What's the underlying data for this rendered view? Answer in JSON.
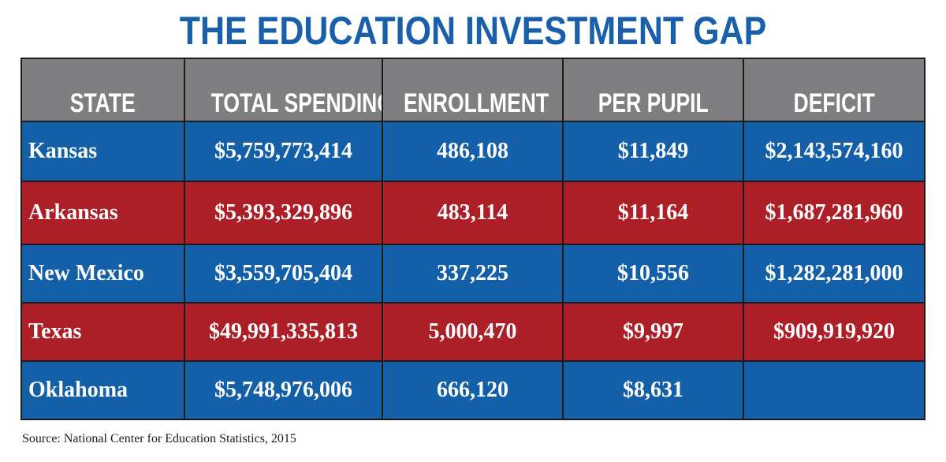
{
  "chart_data": {
    "type": "table",
    "title": "THE EDUCATION INVESTMENT GAP",
    "columns": [
      "STATE",
      "TOTAL SPENDING",
      "ENROLLMENT",
      "PER PUPIL",
      "DEFICIT"
    ],
    "rows": [
      {
        "state": "Kansas",
        "total_spending": "$5,759,773,414",
        "enrollment": "486,108",
        "per_pupil": "$11,849",
        "deficit": "$2,143,574,160",
        "color": "#1360a8"
      },
      {
        "state": "Arkansas",
        "total_spending": "$5,393,329,896",
        "enrollment": "483,114",
        "per_pupil": "$11,164",
        "deficit": "$1,687,281,960",
        "color": "#ad1f27"
      },
      {
        "state": "New Mexico",
        "total_spending": "$3,559,705,404",
        "enrollment": "337,225",
        "per_pupil": "$10,556",
        "deficit": "$1,282,281,000",
        "color": "#1360a8"
      },
      {
        "state": "Texas",
        "total_spending": "$49,991,335,813",
        "enrollment": "5,000,470",
        "per_pupil": "$9,997",
        "deficit": "$909,919,920",
        "color": "#ad1f27"
      },
      {
        "state": "Oklahoma",
        "total_spending": "$5,748,976,006",
        "enrollment": "666,120",
        "per_pupil": "$8,631",
        "deficit": "",
        "color": "#1360a8"
      }
    ],
    "source": "Source: National Center for Education Statistics, 2015"
  },
  "colors": {
    "title": "#1a5fa9",
    "header_bg": "#7f7f81",
    "row_blue": "#1360a8",
    "row_red": "#ad1f27",
    "border": "#1b1b1b"
  }
}
